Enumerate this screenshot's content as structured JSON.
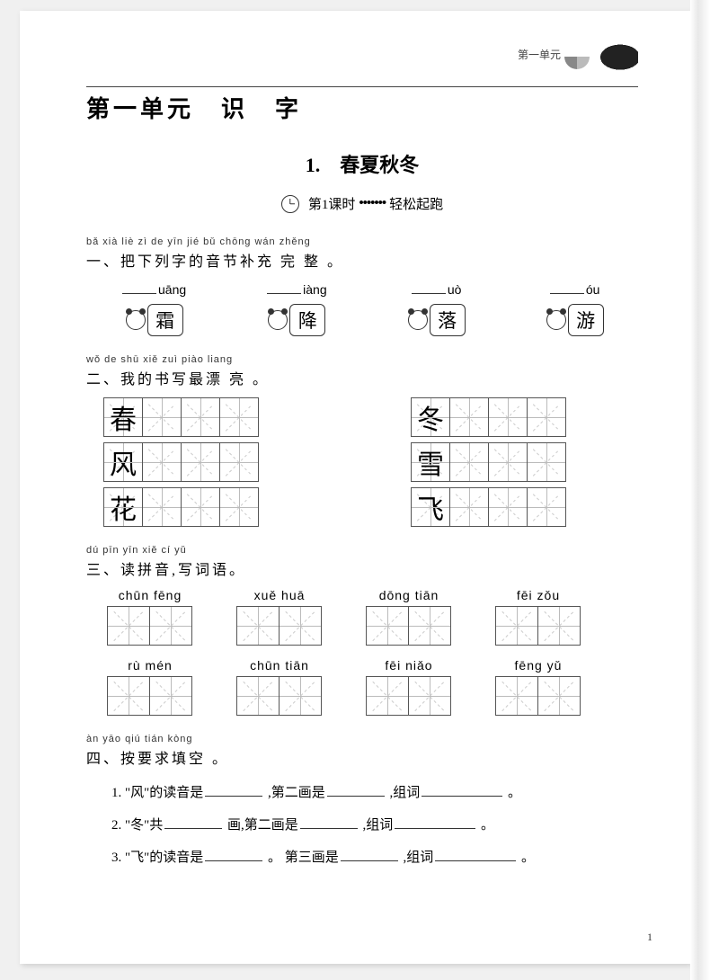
{
  "header": {
    "unit_label": "第一单元"
  },
  "unit_title": "第一单元　识　字",
  "lesson_title": "1.　春夏秋冬",
  "class_row": {
    "label": "第1课时",
    "dots": "•••••••",
    "tag": "轻松起跑"
  },
  "sec1": {
    "pinyin": "bǎ  xià  liè  zì  de  yīn  jié  bǔ  chōng  wán  zhěng",
    "title": "一、把下列字的音节补充 完 整 。",
    "items": [
      {
        "suffix": "uāng",
        "char": "霜"
      },
      {
        "suffix": "iàng",
        "char": "降"
      },
      {
        "suffix": "uò",
        "char": "落"
      },
      {
        "suffix": "óu",
        "char": "游"
      }
    ]
  },
  "sec2": {
    "pinyin": "wǒ  de  shū  xiě  zuì  piào  liang",
    "title": "二、我的书写最漂 亮 。",
    "left": [
      "春",
      "风",
      "花"
    ],
    "right": [
      "冬",
      "雪",
      "飞"
    ]
  },
  "sec3": {
    "pinyin": "dú  pīn  yīn  xiě  cí  yǔ",
    "title": "三、读拼音,写词语。",
    "row1": [
      {
        "py": "chūn fēng"
      },
      {
        "py": "xuě  huā"
      },
      {
        "py": "dōng tiān"
      },
      {
        "py": "fēi  zǒu"
      }
    ],
    "row2": [
      {
        "py": "rù  mén"
      },
      {
        "py": "chūn tiān"
      },
      {
        "py": "fēi  niǎo"
      },
      {
        "py": "fēng  yǔ"
      }
    ]
  },
  "sec4": {
    "pinyin": "àn  yāo  qiú  tián  kòng",
    "title": "四、按要求填空 。",
    "q1": {
      "a": "1. \"风\"的读音是",
      "b": ",第二画是",
      "c": ",组词"
    },
    "q2": {
      "a": "2. \"冬\"共",
      "b": "画,第二画是",
      "c": ",组词"
    },
    "q3": {
      "a": "3. \"飞\"的读音是",
      "b": "。 第三画是",
      "c": ",组词"
    },
    "end": "。"
  },
  "page_num": "1"
}
